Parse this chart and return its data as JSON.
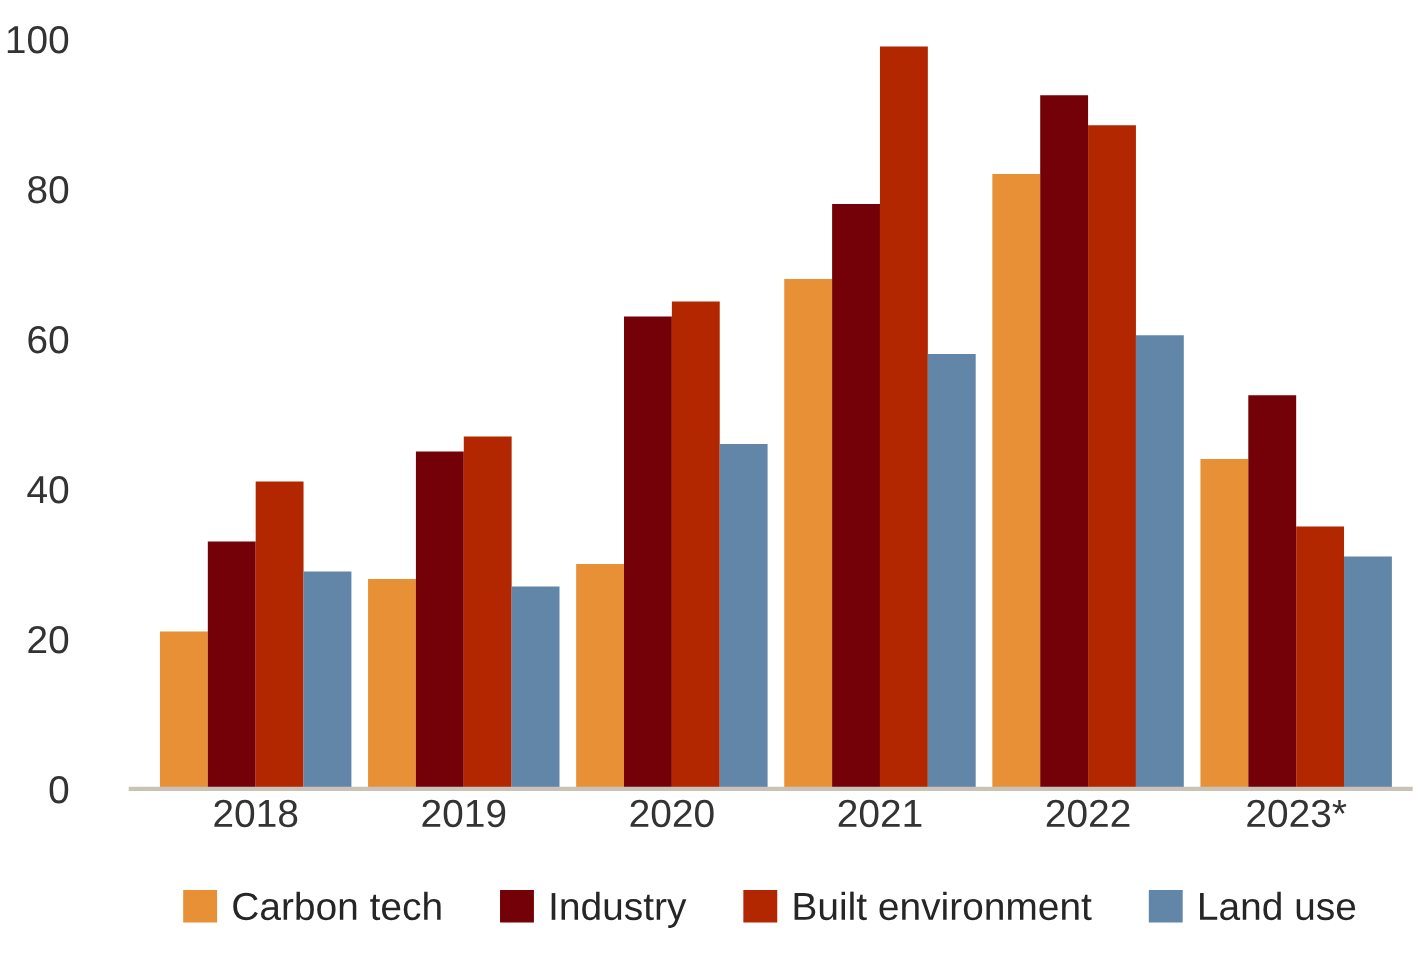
{
  "chart_data": {
    "type": "bar",
    "categories": [
      "2018",
      "2019",
      "2020",
      "2021",
      "2022",
      "2023*"
    ],
    "series": [
      {
        "name": "Carbon tech",
        "color": "#e89035",
        "values": [
          21,
          28,
          30,
          68,
          82,
          44
        ]
      },
      {
        "name": "Industry",
        "color": "#740008",
        "values": [
          33,
          45,
          63,
          78,
          92.5,
          52.5
        ]
      },
      {
        "name": "Built environment",
        "color": "#b22600",
        "values": [
          41,
          47,
          65,
          99,
          88.5,
          35
        ]
      },
      {
        "name": "Land use",
        "color": "#6186a8",
        "values": [
          29,
          27,
          46,
          58,
          60.5,
          31
        ]
      }
    ],
    "ylim": [
      0,
      100
    ],
    "yticks": [
      0,
      20,
      40,
      60,
      80,
      100
    ],
    "grid": false,
    "legend": "bottom"
  }
}
